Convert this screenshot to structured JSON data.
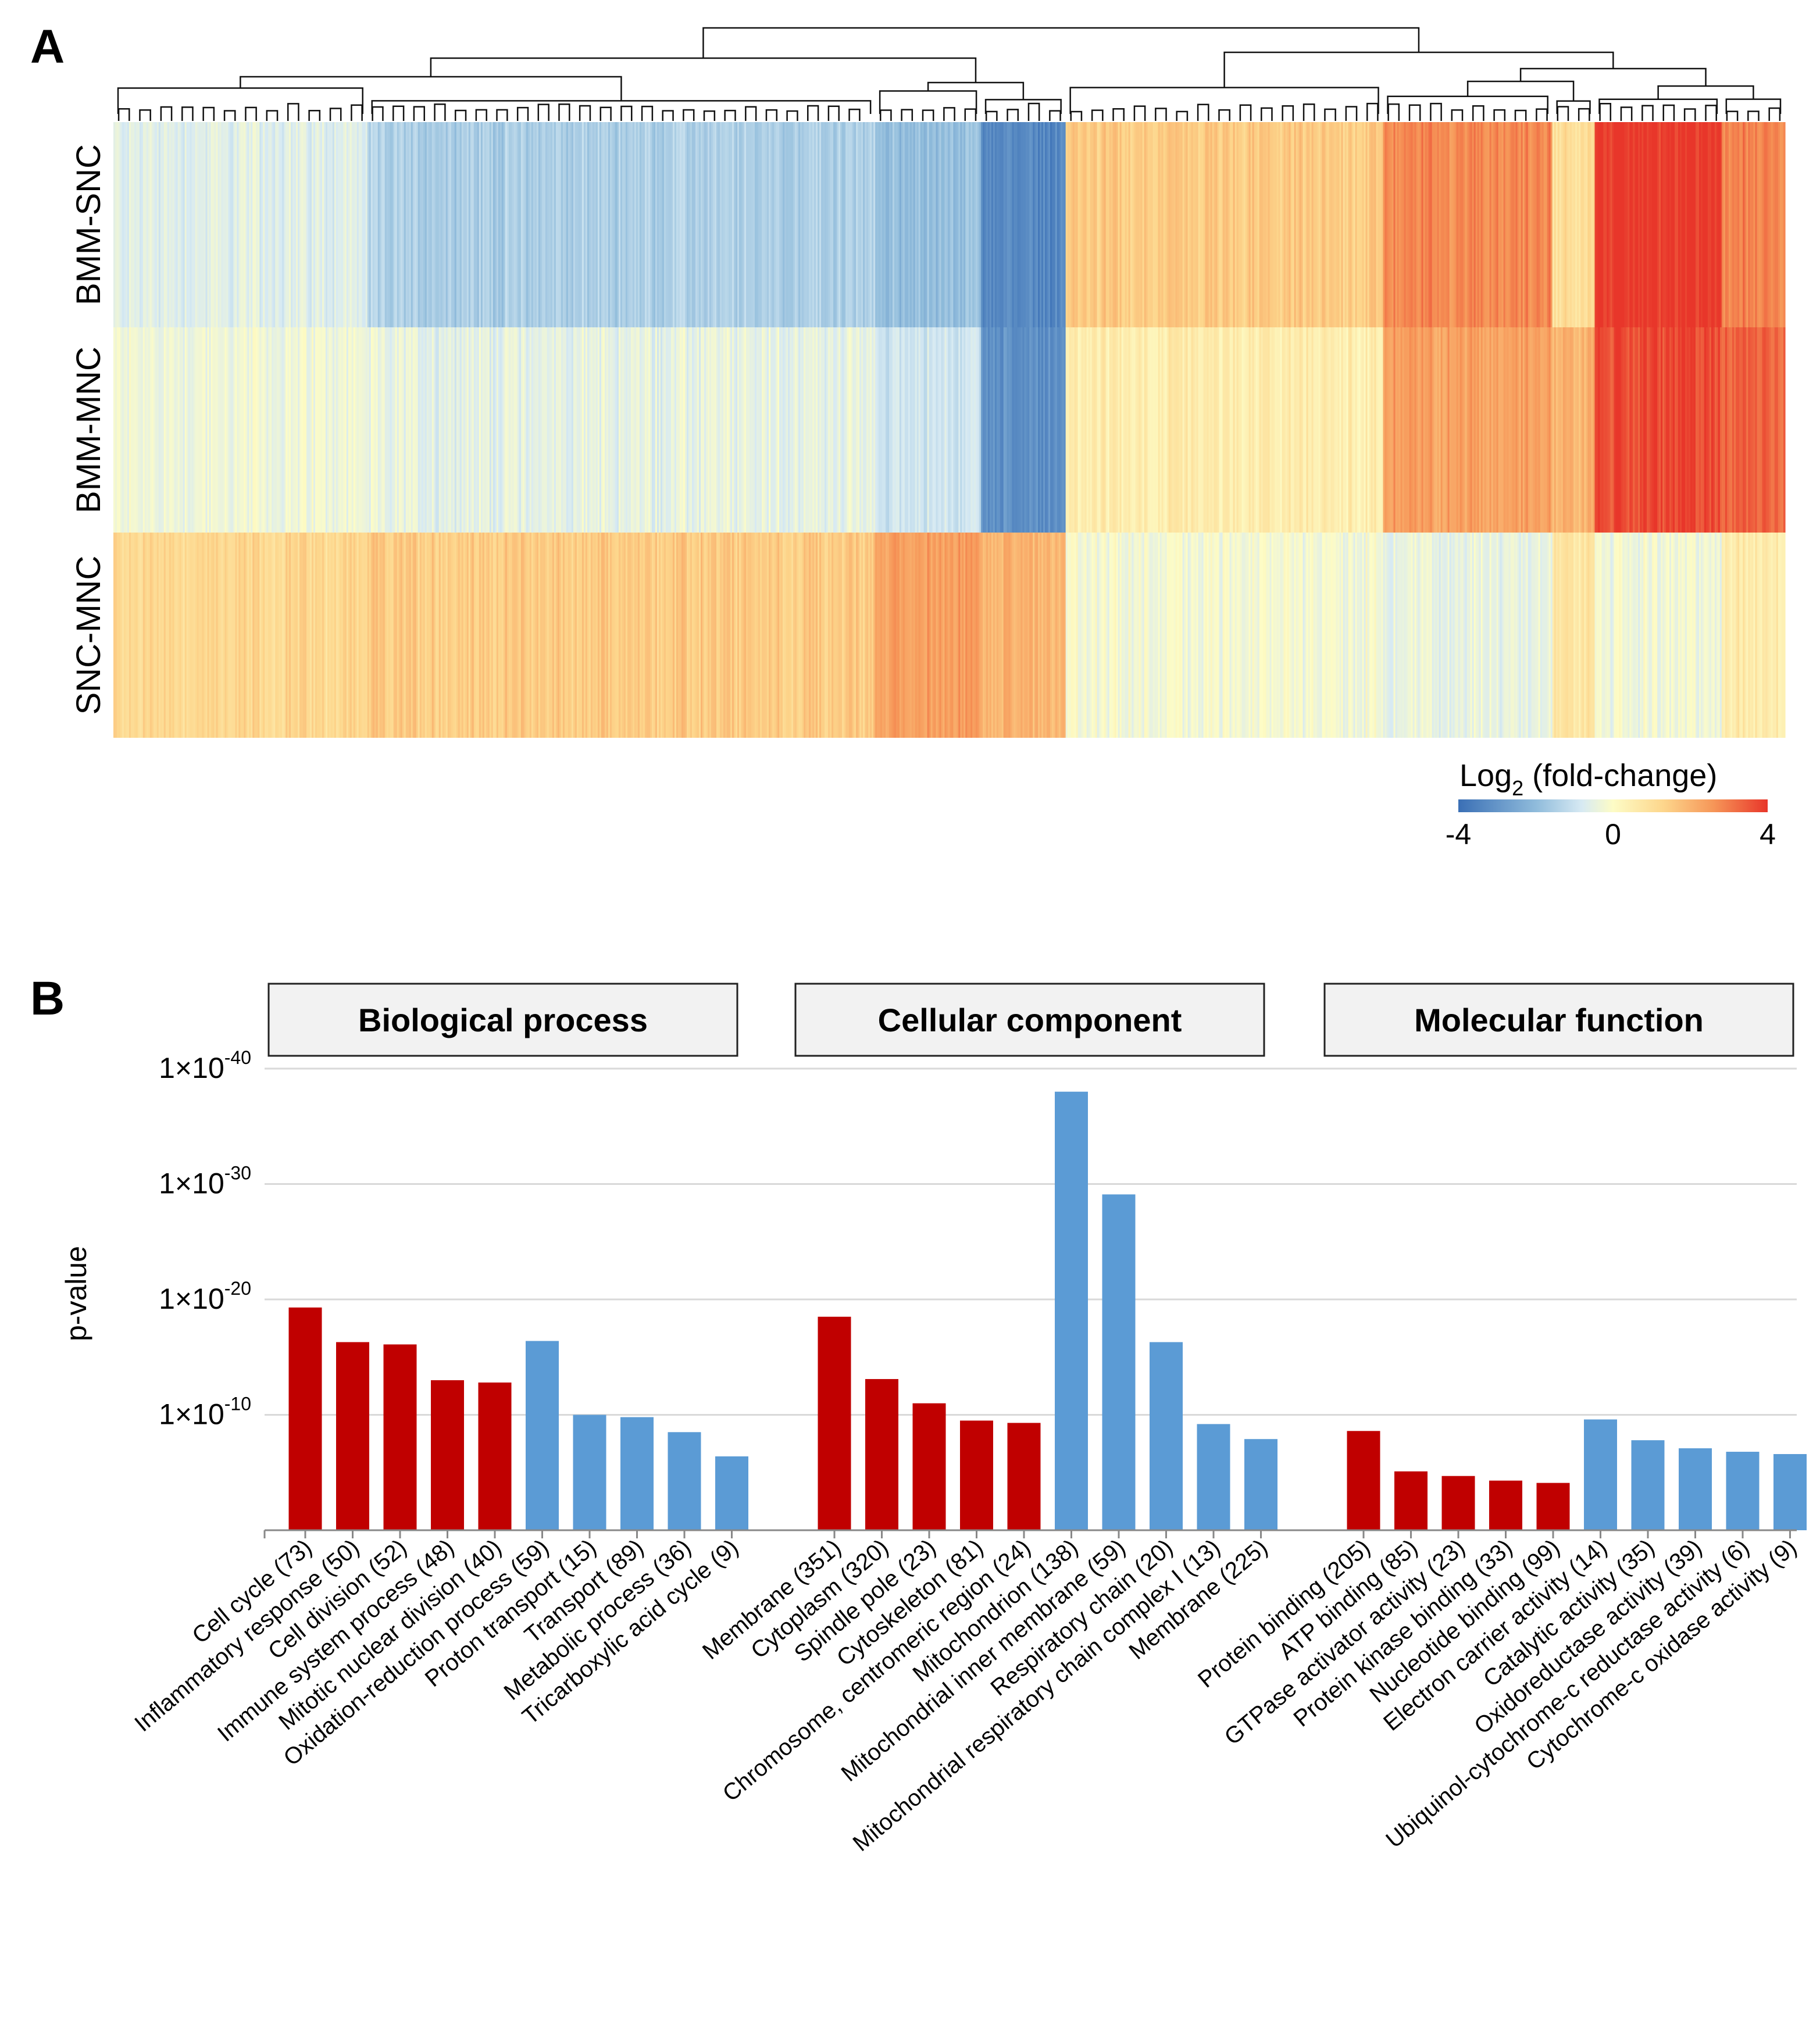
{
  "panel_a_label": "A",
  "panel_b_label": "B",
  "colors": {
    "up": "#c00000",
    "down": "#5b9bd5",
    "heat_neg": "#3a6fb5",
    "heat_zero": "#fdfcc6",
    "heat_pos": "#e8362a"
  },
  "chart_data": [
    {
      "type": "heatmap",
      "rows": [
        "BMM-SNC",
        "BMM-MNC",
        "SNC-MNC"
      ],
      "colorbar": {
        "title_prefix": "Log",
        "title_sub": "2",
        "title_suffix": " (fold-change)",
        "min": -4,
        "mid": 0,
        "max": 4,
        "tick_labels": [
          "-4",
          "0",
          "4"
        ]
      },
      "clusters": [
        {
          "name": "c1",
          "weight": 12,
          "values": [
            -0.6,
            -0.3,
            1.2
          ]
        },
        {
          "name": "c2",
          "weight": 24,
          "values": [
            -1.5,
            -0.5,
            1.5
          ]
        },
        {
          "name": "c3",
          "weight": 5,
          "values": [
            -1.9,
            -0.9,
            2.4
          ]
        },
        {
          "name": "c4",
          "weight": 4,
          "values": [
            -3.3,
            -3.1,
            2.0
          ]
        },
        {
          "name": "c5",
          "weight": 15,
          "values": [
            1.5,
            0.5,
            -0.2
          ]
        },
        {
          "name": "c6",
          "weight": 8,
          "values": [
            2.8,
            2.4,
            -0.4
          ]
        },
        {
          "name": "c7",
          "weight": 2,
          "values": [
            1.0,
            2.0,
            0.8
          ]
        },
        {
          "name": "c8",
          "weight": 6,
          "values": [
            4.0,
            3.7,
            -0.3
          ]
        },
        {
          "name": "c9",
          "weight": 3,
          "values": [
            2.9,
            3.4,
            0.6
          ]
        }
      ]
    },
    {
      "type": "bar",
      "ylabel": "p-value",
      "yscale": "-log10",
      "ylim": [
        0,
        40
      ],
      "yticks": [
        {
          "value": 10,
          "base": "1×10",
          "exp": "-10"
        },
        {
          "value": 20,
          "base": "1×10",
          "exp": "-20"
        },
        {
          "value": 30,
          "base": "1×10",
          "exp": "-30"
        },
        {
          "value": 40,
          "base": "1×10",
          "exp": "-40"
        }
      ],
      "groups": [
        {
          "title": "Biological process",
          "categories": [
            "Cell cycle (73)",
            "Inflammatory response (50)",
            "Cell division (52)",
            "Immune system process (48)",
            "Mitotic nuclear division (40)",
            "Oxidation-reduction process (59)",
            "Proton transport (15)",
            "Transport (89)",
            "Metabolic process (36)",
            "Tricarboxylic acid cycle (9)"
          ],
          "values": [
            19.3,
            16.3,
            16.1,
            13.0,
            12.8,
            16.4,
            10.0,
            9.8,
            8.5,
            6.4
          ],
          "direction": [
            "up",
            "up",
            "up",
            "up",
            "up",
            "down",
            "down",
            "down",
            "down",
            "down"
          ]
        },
        {
          "title": "Cellular component",
          "categories": [
            "Membrane (351)",
            "Cytoplasm (320)",
            "Spindle pole (23)",
            "Cytoskeleton (81)",
            "Chromosome, centromeric region (24)",
            "Mitochondrion (138)",
            "Mitochondrial inner membrane (59)",
            "Respiratory chain (20)",
            "Mitochondrial respiratory chain complex I (13)",
            "Membrane (225)"
          ],
          "values": [
            18.5,
            13.1,
            11.0,
            9.5,
            9.3,
            38.0,
            29.1,
            16.3,
            9.2,
            7.9
          ],
          "direction": [
            "up",
            "up",
            "up",
            "up",
            "up",
            "down",
            "down",
            "down",
            "down",
            "down"
          ]
        },
        {
          "title": "Molecular function",
          "categories": [
            "Protein binding (205)",
            "ATP binding (85)",
            "GTPase activator activity (23)",
            "Protein kinase binding (33)",
            "Nucleotide binding (99)",
            "Electron carrier activity (14)",
            "Catalytic activity (35)",
            "Oxidoreductase activity (39)",
            "Ubiquinol-cytochrome-c reductase activity (6)",
            "Cytochrome-c oxidase activity (9)"
          ],
          "values": [
            8.6,
            5.1,
            4.7,
            4.3,
            4.1,
            9.6,
            7.8,
            7.1,
            6.8,
            6.6
          ],
          "direction": [
            "up",
            "up",
            "up",
            "up",
            "up",
            "down",
            "down",
            "down",
            "down",
            "down"
          ]
        }
      ]
    }
  ]
}
